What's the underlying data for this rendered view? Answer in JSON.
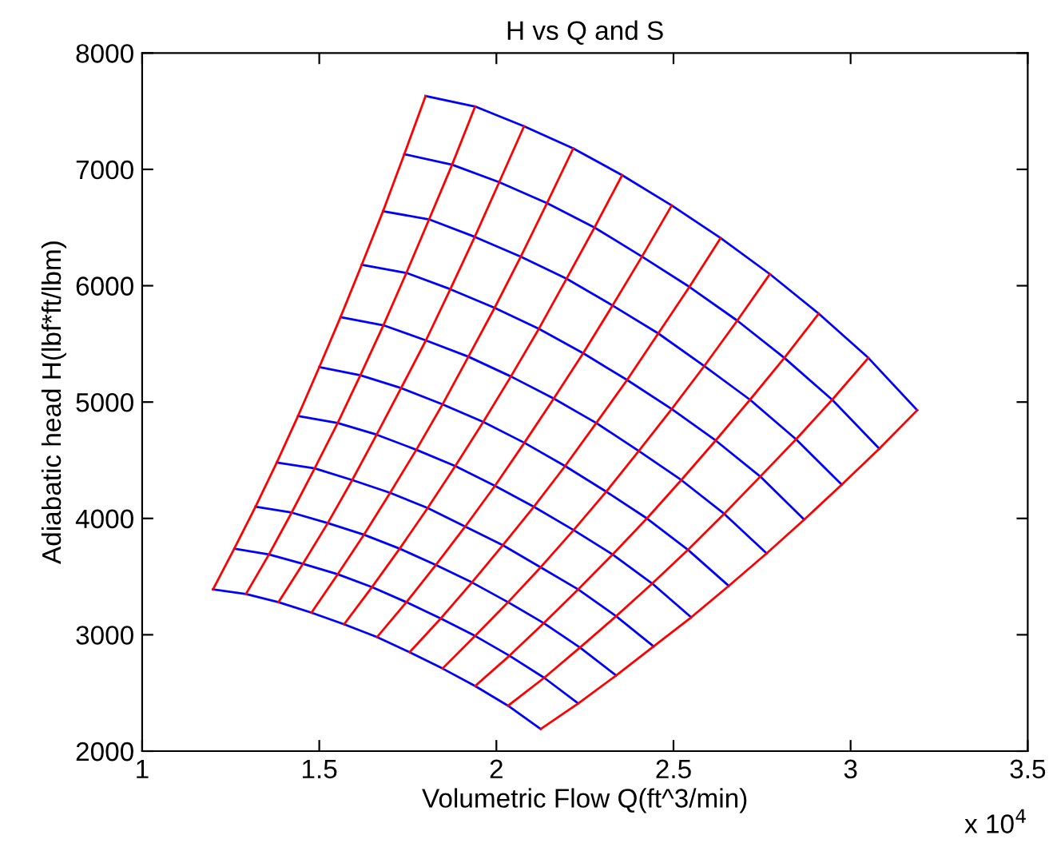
{
  "chart_data": {
    "type": "line",
    "title": "H vs Q and S",
    "xlabel": "Volumetric Flow Q(ft^3/min)",
    "ylabel": "Adiabatic head H(lbf*ft/lbm)",
    "annotations": [
      "x 10$^{4}$"
    ],
    "xlim": [
      1,
      3.5
    ],
    "xticks": [
      1,
      1.5,
      2,
      2.5,
      3,
      3.5
    ],
    "ylim": [
      2000,
      8000
    ],
    "yticks": [
      2000,
      3000,
      4000,
      5000,
      6000,
      7000,
      8000
    ],
    "grid": false,
    "legend": false,
    "marker": "none",
    "line_style": "solid",
    "series": [
      {
        "color": "#0000ff",
        "x": [
          1.2,
          1.293,
          1.385,
          1.478,
          1.57,
          1.663,
          1.755,
          1.848,
          1.94,
          2.033,
          2.125
        ],
        "values": [
          3390,
          3350,
          3280,
          3190,
          3090,
          2980,
          2850,
          2710,
          2560,
          2390,
          2190
        ]
      },
      {
        "color": "#0000ff",
        "x": [
          1.26,
          1.358,
          1.454,
          1.552,
          1.649,
          1.746,
          1.843,
          1.94,
          2.037,
          2.135,
          2.231
        ],
        "values": [
          3740,
          3690,
          3610,
          3520,
          3410,
          3280,
          3140,
          2990,
          2820,
          2630,
          2410
        ]
      },
      {
        "color": "#0000ff",
        "x": [
          1.32,
          1.422,
          1.524,
          1.626,
          1.727,
          1.829,
          1.931,
          2.033,
          2.134,
          2.236,
          2.338
        ],
        "values": [
          4100,
          4050,
          3960,
          3860,
          3740,
          3600,
          3450,
          3280,
          3100,
          2890,
          2650
        ]
      },
      {
        "color": "#0000ff",
        "x": [
          1.38,
          1.487,
          1.593,
          1.7,
          1.806,
          1.912,
          2.018,
          2.125,
          2.231,
          2.338,
          2.444
        ],
        "values": [
          4480,
          4430,
          4330,
          4220,
          4090,
          3930,
          3770,
          3580,
          3390,
          3160,
          2900
        ]
      },
      {
        "color": "#0000ff",
        "x": [
          1.44,
          1.552,
          1.662,
          1.774,
          1.884,
          1.996,
          2.106,
          2.218,
          2.328,
          2.44,
          2.55
        ],
        "values": [
          4880,
          4820,
          4720,
          4590,
          4450,
          4280,
          4100,
          3900,
          3690,
          3440,
          3150
        ]
      },
      {
        "color": "#0000ff",
        "x": [
          1.5,
          1.616,
          1.731,
          1.848,
          1.963,
          2.079,
          2.194,
          2.31,
          2.425,
          2.541,
          2.656
        ],
        "values": [
          5300,
          5230,
          5120,
          4980,
          4830,
          4650,
          4450,
          4230,
          4000,
          3730,
          3420
        ]
      },
      {
        "color": "#0000ff",
        "x": [
          1.56,
          1.681,
          1.801,
          1.921,
          2.041,
          2.162,
          2.282,
          2.402,
          2.522,
          2.643,
          2.763
        ],
        "values": [
          5730,
          5660,
          5530,
          5390,
          5220,
          5030,
          4820,
          4580,
          4330,
          4040,
          3700
        ]
      },
      {
        "color": "#0000ff",
        "x": [
          1.62,
          1.746,
          1.87,
          1.995,
          2.12,
          2.245,
          2.369,
          2.495,
          2.619,
          2.745,
          2.869
        ],
        "values": [
          6180,
          6110,
          5970,
          5810,
          5630,
          5420,
          5190,
          4940,
          4670,
          4360,
          3990
        ]
      },
      {
        "color": "#0000ff",
        "x": [
          1.68,
          1.81,
          1.939,
          2.069,
          2.198,
          2.328,
          2.457,
          2.587,
          2.716,
          2.846,
          2.975
        ],
        "values": [
          6640,
          6570,
          6420,
          6250,
          6060,
          5830,
          5590,
          5310,
          5020,
          4680,
          4290
        ]
      },
      {
        "color": "#0000ff",
        "x": [
          1.74,
          1.875,
          2.008,
          2.143,
          2.277,
          2.411,
          2.545,
          2.68,
          2.813,
          2.948,
          3.081
        ],
        "values": [
          7130,
          7040,
          6890,
          6710,
          6500,
          6250,
          5990,
          5700,
          5380,
          5020,
          4600
        ]
      },
      {
        "color": "#0000ff",
        "x": [
          1.8,
          1.94,
          2.078,
          2.217,
          2.355,
          2.495,
          2.633,
          2.772,
          2.91,
          3.05,
          3.188
        ],
        "values": [
          7630,
          7540,
          7370,
          7180,
          6950,
          6690,
          6410,
          6100,
          5760,
          5380,
          4930
        ]
      },
      {
        "color": "#ff0000",
        "x": [
          1.2,
          1.26,
          1.32,
          1.38,
          1.44,
          1.5,
          1.56,
          1.62,
          1.68,
          1.74,
          1.8
        ],
        "values": [
          3390,
          3740,
          4100,
          4480,
          4880,
          5300,
          5730,
          6180,
          6640,
          7130,
          7630
        ]
      },
      {
        "color": "#ff0000",
        "x": [
          1.293,
          1.358,
          1.422,
          1.487,
          1.552,
          1.616,
          1.681,
          1.746,
          1.81,
          1.875,
          1.94
        ],
        "values": [
          3350,
          3690,
          4050,
          4430,
          4820,
          5230,
          5660,
          6110,
          6570,
          7040,
          7540
        ]
      },
      {
        "color": "#ff0000",
        "x": [
          1.385,
          1.454,
          1.524,
          1.593,
          1.662,
          1.731,
          1.801,
          1.87,
          1.939,
          2.008,
          2.078
        ],
        "values": [
          3280,
          3610,
          3960,
          4330,
          4720,
          5120,
          5530,
          5970,
          6420,
          6890,
          7370
        ]
      },
      {
        "color": "#ff0000",
        "x": [
          1.478,
          1.552,
          1.626,
          1.7,
          1.774,
          1.848,
          1.921,
          1.995,
          2.069,
          2.143,
          2.217
        ],
        "values": [
          3190,
          3520,
          3860,
          4220,
          4590,
          4980,
          5390,
          5810,
          6250,
          6710,
          7180
        ]
      },
      {
        "color": "#ff0000",
        "x": [
          1.57,
          1.649,
          1.727,
          1.806,
          1.884,
          1.963,
          2.041,
          2.12,
          2.198,
          2.277,
          2.355
        ],
        "values": [
          3090,
          3410,
          3740,
          4090,
          4450,
          4830,
          5220,
          5630,
          6060,
          6500,
          6950
        ]
      },
      {
        "color": "#ff0000",
        "x": [
          1.663,
          1.746,
          1.829,
          1.912,
          1.996,
          2.079,
          2.162,
          2.245,
          2.328,
          2.411,
          2.495
        ],
        "values": [
          2980,
          3280,
          3600,
          3930,
          4280,
          4650,
          5030,
          5420,
          5830,
          6250,
          6690
        ]
      },
      {
        "color": "#ff0000",
        "x": [
          1.755,
          1.843,
          1.931,
          2.018,
          2.106,
          2.194,
          2.282,
          2.369,
          2.457,
          2.545,
          2.633
        ],
        "values": [
          2850,
          3140,
          3450,
          3770,
          4100,
          4450,
          4820,
          5190,
          5590,
          5990,
          6410
        ]
      },
      {
        "color": "#ff0000",
        "x": [
          1.848,
          1.94,
          2.033,
          2.125,
          2.218,
          2.31,
          2.402,
          2.495,
          2.587,
          2.68,
          2.772
        ],
        "values": [
          2710,
          2990,
          3280,
          3580,
          3900,
          4230,
          4580,
          4940,
          5310,
          5700,
          6100
        ]
      },
      {
        "color": "#ff0000",
        "x": [
          1.94,
          2.037,
          2.134,
          2.231,
          2.328,
          2.425,
          2.522,
          2.619,
          2.716,
          2.813,
          2.91
        ],
        "values": [
          2560,
          2820,
          3100,
          3390,
          3690,
          4000,
          4330,
          4670,
          5020,
          5380,
          5760
        ]
      },
      {
        "color": "#ff0000",
        "x": [
          2.033,
          2.135,
          2.236,
          2.338,
          2.44,
          2.541,
          2.643,
          2.745,
          2.846,
          2.948,
          3.05
        ],
        "values": [
          2390,
          2630,
          2890,
          3160,
          3440,
          3730,
          4040,
          4360,
          4680,
          5020,
          5380
        ]
      },
      {
        "color": "#ff0000",
        "x": [
          2.125,
          2.231,
          2.338,
          2.444,
          2.55,
          2.656,
          2.763,
          2.869,
          2.975,
          3.081,
          3.188
        ],
        "values": [
          2190,
          2410,
          2650,
          2900,
          3150,
          3420,
          3700,
          3990,
          4290,
          4600,
          4930
        ]
      }
    ]
  }
}
